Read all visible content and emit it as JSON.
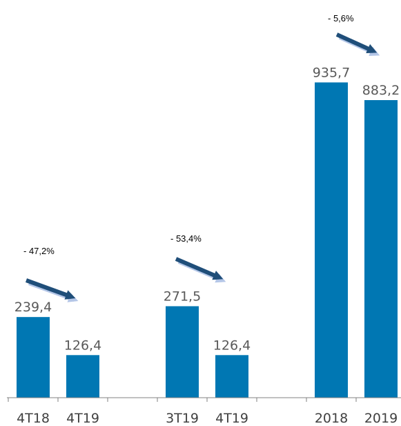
{
  "chart_data": {
    "type": "bar",
    "categories": [
      "4T18",
      "4T19",
      "3T19",
      "4T19",
      "2018",
      "2019"
    ],
    "values": [
      239.4,
      126.4,
      271.5,
      126.4,
      935.7,
      883.2
    ],
    "value_labels": [
      "239,4",
      "126,4",
      "271,5",
      "126,4",
      "935,7",
      "883,2"
    ],
    "changes": [
      "- 47,2%",
      "- 53,4%",
      "- 5,6%"
    ],
    "ylim": [
      0,
      1000
    ],
    "grid": false,
    "colors": {
      "bar": "#0077b3",
      "arrow": "#1f4e79",
      "arrow_shadow": "#b4c6e7"
    }
  }
}
